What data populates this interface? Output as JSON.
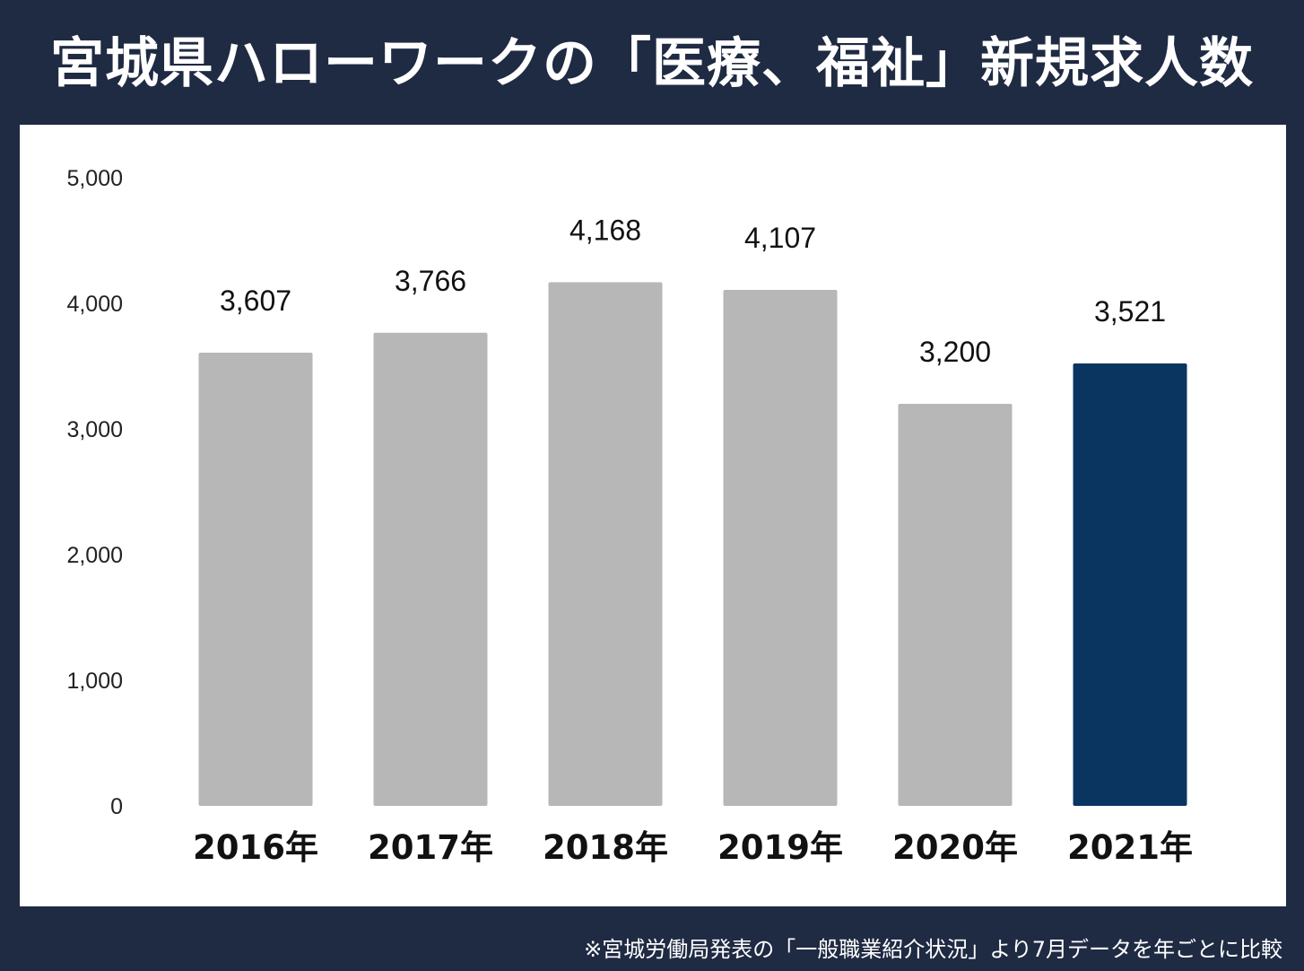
{
  "title": "宮城県ハローワークの「医療、福祉」新規求人数",
  "footnote": "※宮城労働局発表の「一般職業紹介状況」より7月データを年ごとに比較",
  "colors": {
    "background": "#1f2a43",
    "panel": "#ffffff",
    "bar": "#b7b7b7",
    "highlight_bar": "#0b3561"
  },
  "chart_data": {
    "type": "bar",
    "categories": [
      "2016年",
      "2017年",
      "2018年",
      "2019年",
      "2020年",
      "2021年"
    ],
    "values": [
      3607,
      3766,
      4168,
      4107,
      3200,
      3521
    ],
    "data_labels": [
      "3,607",
      "3,766",
      "4,168",
      "4,107",
      "3,200",
      "3,521"
    ],
    "highlight_index": 5,
    "ylim": [
      0,
      5000
    ],
    "yticks": [
      0,
      1000,
      2000,
      3000,
      4000,
      5000
    ],
    "ytick_labels": [
      "0",
      "1,000",
      "2,000",
      "3,000",
      "4,000",
      "5,000"
    ],
    "grid": false,
    "legend": "none"
  }
}
